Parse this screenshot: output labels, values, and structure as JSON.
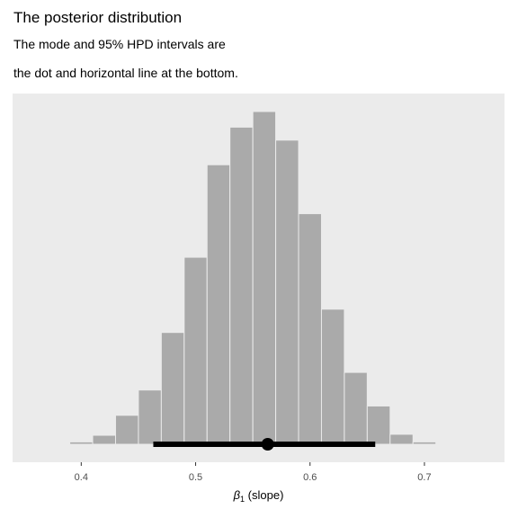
{
  "title": "The posterior distribution",
  "subtitle_lines": [
    "The mode and 95% HPD intervals are",
    "the dot and horizontal line at the bottom."
  ],
  "chart_data": {
    "type": "bar",
    "subtype": "histogram",
    "xlabel_symbol": "β",
    "xlabel_subscript": "1",
    "xlabel_suffix": " (slope)",
    "ylabel": "",
    "x_ticks": [
      0.4,
      0.5,
      0.6,
      0.7
    ],
    "x_tick_labels": [
      "0.4",
      "0.5",
      "0.6",
      "0.7"
    ],
    "xlim": [
      0.34,
      0.77
    ],
    "y_axis_visible": false,
    "ylim": [
      0,
      1.0
    ],
    "bin_width": 0.02,
    "bins": [
      {
        "center": 0.4,
        "value": 0.007
      },
      {
        "center": 0.42,
        "value": 0.027
      },
      {
        "center": 0.44,
        "value": 0.087
      },
      {
        "center": 0.46,
        "value": 0.163
      },
      {
        "center": 0.48,
        "value": 0.336
      },
      {
        "center": 0.5,
        "value": 0.562
      },
      {
        "center": 0.52,
        "value": 0.84
      },
      {
        "center": 0.54,
        "value": 0.953
      },
      {
        "center": 0.56,
        "value": 1.0
      },
      {
        "center": 0.58,
        "value": 0.914
      },
      {
        "center": 0.6,
        "value": 0.693
      },
      {
        "center": 0.62,
        "value": 0.406
      },
      {
        "center": 0.64,
        "value": 0.216
      },
      {
        "center": 0.66,
        "value": 0.115
      },
      {
        "center": 0.68,
        "value": 0.03
      },
      {
        "center": 0.7,
        "value": 0.007
      }
    ],
    "mode": 0.563,
    "hpd_95": [
      0.463,
      0.657
    ],
    "grid": false,
    "colors": {
      "panel": "#ebebeb",
      "bar_fill": "#aaaaaa",
      "bar_outline": "#ebebeb",
      "interval": "#000000"
    }
  }
}
